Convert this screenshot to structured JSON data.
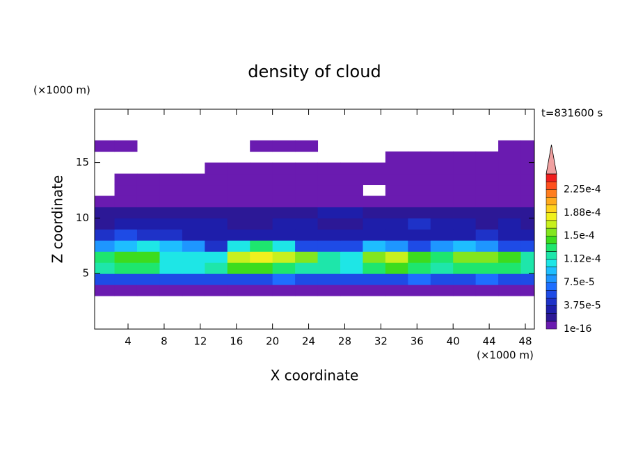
{
  "chart_data": {
    "type": "contour",
    "title": "density of cloud",
    "y_unit": "(×1000 m)",
    "x_unit": "(×1000 m)",
    "annotation": "t=831600 s",
    "xlabel": "X coordinate",
    "ylabel": "Z coordinate",
    "xlim": [
      0.3,
      49
    ],
    "ylim": [
      0,
      19.8
    ],
    "xticks": [
      4,
      8,
      12,
      16,
      20,
      24,
      28,
      32,
      36,
      40,
      44,
      48
    ],
    "yticks": [
      5,
      10,
      15
    ],
    "x": [
      1.25,
      3.75,
      6.25,
      8.75,
      11.25,
      13.75,
      16.25,
      18.75,
      21.25,
      23.75,
      26.25,
      28.75,
      31.25,
      33.75,
      36.25,
      38.75,
      41.25,
      43.75,
      46.25,
      48.75
    ],
    "z": [
      0.5,
      1.5,
      2.5,
      3.5,
      4.5,
      5.5,
      6.5,
      7.5,
      8.5,
      9.5,
      10.5,
      11.5,
      12.5,
      13.5,
      14.5,
      15.5,
      16.5,
      17.5,
      18.5,
      19.5
    ],
    "values": [
      [
        null,
        null,
        null,
        null,
        null,
        null,
        null,
        null,
        null,
        null,
        null,
        null,
        null,
        null,
        null,
        null,
        null,
        null,
        null,
        null
      ],
      [
        null,
        null,
        null,
        null,
        null,
        null,
        null,
        null,
        null,
        null,
        null,
        null,
        null,
        null,
        null,
        null,
        null,
        null,
        null,
        null
      ],
      [
        null,
        null,
        null,
        null,
        null,
        null,
        null,
        null,
        null,
        null,
        null,
        null,
        null,
        null,
        null,
        null,
        null,
        null,
        null,
        null
      ],
      [
        8e-06,
        8e-06,
        8e-06,
        8e-06,
        8e-06,
        8e-06,
        8e-06,
        8e-06,
        8e-06,
        8e-06,
        8e-06,
        8e-06,
        8e-06,
        8e-06,
        8e-06,
        8e-06,
        8e-06,
        8e-06,
        8e-06,
        8e-06
      ],
      [
        5.5e-05,
        6e-05,
        6e-05,
        5.5e-05,
        6e-05,
        5.5e-05,
        6e-05,
        6e-05,
        6.5e-05,
        6e-05,
        6e-05,
        5.5e-05,
        6e-05,
        6e-05,
        6.5e-05,
        6e-05,
        6e-05,
        6.5e-05,
        6e-05,
        5.5e-05
      ],
      [
        0.00012,
        0.00013,
        0.00013,
        0.0001,
        0.00011,
        0.00012,
        0.00014,
        0.00014,
        0.00013,
        0.00012,
        0.000115,
        0.00011,
        0.000135,
        0.00014,
        0.00013,
        0.00012,
        0.00013,
        0.000135,
        0.00013,
        0.00012
      ],
      [
        0.00013,
        0.000145,
        0.00014,
        0.00011,
        0.0001,
        0.000105,
        0.000165,
        0.000175,
        0.00017,
        0.00015,
        0.00012,
        0.00011,
        0.00016,
        0.000165,
        0.000145,
        0.00013,
        0.00015,
        0.000155,
        0.000145,
        0.00012
      ],
      [
        8e-05,
        9e-05,
        0.0001,
        9e-05,
        8e-05,
        4e-05,
        0.0001,
        0.00013,
        0.00011,
        6e-05,
        5e-05,
        5e-05,
        9e-05,
        8e-05,
        6e-05,
        8e-05,
        9e-05,
        8e-05,
        6e-05,
        5e-05
      ],
      [
        4e-05,
        5e-05,
        4.5e-05,
        4e-05,
        3.5e-05,
        3e-05,
        3e-05,
        3.5e-05,
        3e-05,
        3e-05,
        2.5e-05,
        3e-05,
        3.5e-05,
        3e-05,
        3e-05,
        3e-05,
        3.5e-05,
        4e-05,
        3.5e-05,
        3.5e-05
      ],
      [
        2e-05,
        2.5e-05,
        3e-05,
        3.5e-05,
        3e-05,
        2.5e-05,
        2e-05,
        2e-05,
        2.5e-05,
        2.5e-05,
        2e-05,
        2e-05,
        3e-05,
        3.5e-05,
        4e-05,
        3e-05,
        2.5e-05,
        2e-05,
        2.5e-05,
        2e-05
      ],
      [
        1.5e-05,
        1.5e-05,
        1.8e-05,
        2e-05,
        1.5e-05,
        1.5e-05,
        1.8e-05,
        1.5e-05,
        1.5e-05,
        2e-05,
        2.5e-05,
        2.5e-05,
        2e-05,
        2e-05,
        1.8e-05,
        1.5e-05,
        1.5e-05,
        1.5e-05,
        1.5e-05,
        1.5e-05
      ],
      [
        8e-06,
        8e-06,
        8e-06,
        8e-06,
        8e-06,
        8e-06,
        8e-06,
        8e-06,
        8e-06,
        8e-06,
        8e-06,
        8e-06,
        8e-06,
        8e-06,
        8e-06,
        8e-06,
        8e-06,
        8e-06,
        8e-06,
        8e-06
      ],
      [
        null,
        5e-06,
        5e-06,
        5e-06,
        5e-06,
        5e-06,
        5e-06,
        5e-06,
        5e-06,
        5e-06,
        5e-06,
        5e-06,
        null,
        5e-06,
        5e-06,
        5e-06,
        5e-06,
        5e-06,
        5e-06,
        5e-06
      ],
      [
        null,
        5e-06,
        5e-06,
        5e-06,
        5e-06,
        5e-06,
        5e-06,
        5e-06,
        5e-06,
        5e-06,
        5e-06,
        5e-06,
        5e-06,
        5e-06,
        5e-06,
        5e-06,
        5e-06,
        5e-06,
        5e-06,
        5e-06
      ],
      [
        null,
        null,
        null,
        null,
        null,
        5e-06,
        5e-06,
        5e-06,
        5e-06,
        5e-06,
        5e-06,
        5e-06,
        5e-06,
        5e-06,
        5e-06,
        5e-06,
        5e-06,
        5e-06,
        5e-06,
        5e-06
      ],
      [
        null,
        null,
        null,
        null,
        null,
        null,
        null,
        null,
        null,
        null,
        null,
        null,
        null,
        5e-06,
        5e-06,
        5e-06,
        5e-06,
        5e-06,
        5e-06,
        5e-06
      ],
      [
        5e-06,
        5e-06,
        null,
        null,
        null,
        null,
        null,
        5e-06,
        5e-06,
        5e-06,
        null,
        null,
        null,
        null,
        null,
        null,
        null,
        null,
        5e-06,
        5e-06
      ],
      [
        null,
        null,
        null,
        null,
        null,
        null,
        null,
        null,
        null,
        null,
        null,
        null,
        null,
        null,
        null,
        null,
        null,
        null,
        null,
        null
      ],
      [
        null,
        null,
        null,
        null,
        null,
        null,
        null,
        null,
        null,
        null,
        null,
        null,
        null,
        null,
        null,
        null,
        null,
        null,
        null,
        null
      ],
      [
        null,
        null,
        null,
        null,
        null,
        null,
        null,
        null,
        null,
        null,
        null,
        null,
        null,
        null,
        null,
        null,
        null,
        null,
        null,
        null
      ]
    ],
    "colorbar": {
      "levels": [
        1e-16,
        1.25e-05,
        2.5e-05,
        3.75e-05,
        5e-05,
        6.25e-05,
        7.5e-05,
        8.75e-05,
        0.0001,
        0.0001125,
        0.000125,
        0.0001375,
        0.00015,
        0.0001625,
        0.000175,
        0.0001875,
        0.0002,
        0.0002125,
        0.000225,
        0.0002375,
        0.00025
      ],
      "colors": [
        "#6a1bb0",
        "#2c1896",
        "#1e1eaa",
        "#1e32c8",
        "#1e4be6",
        "#1e6eff",
        "#1e96ff",
        "#1ebeff",
        "#1ee6e6",
        "#1ee6aa",
        "#1ee66e",
        "#3cdc1e",
        "#82e61e",
        "#c8f01e",
        "#f0f01e",
        "#ffd21e",
        "#ffaa1e",
        "#ff7d1e",
        "#ff501e",
        "#f01e1e"
      ],
      "extend_color": "#f0a0a0",
      "ticks": [
        1e-16,
        {
          "value": 3.75e-05,
          "label": "3.75e-5"
        },
        {
          "value": 7.5e-05,
          "label": "7.5e-5"
        },
        {
          "value": 0.0001125,
          "label": "1.12e-4"
        },
        {
          "value": 0.00015,
          "label": "1.5e-4"
        },
        {
          "value": 0.0001875,
          "label": "1.88e-4"
        },
        {
          "value": 0.000225,
          "label": "2.25e-4"
        }
      ]
    }
  }
}
